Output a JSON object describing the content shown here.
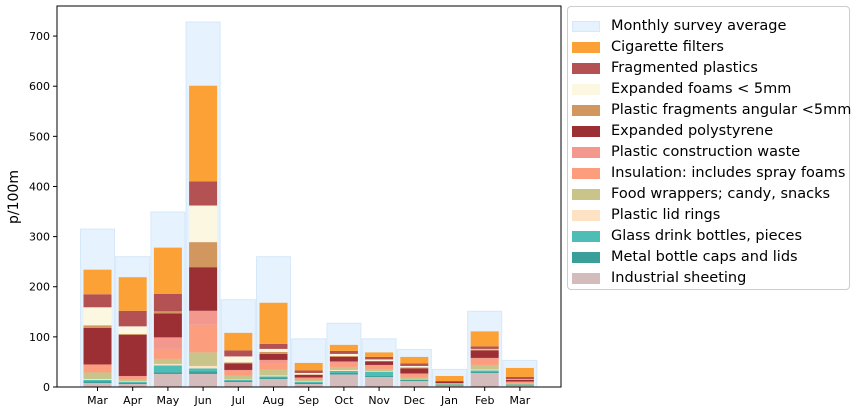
{
  "chart_data": {
    "type": "bar",
    "ylabel": "p/100m",
    "xlabel": "",
    "ylim": [
      0,
      760
    ],
    "yticks": [
      0,
      100,
      200,
      300,
      400,
      500,
      600,
      700
    ],
    "categories": [
      "Mar",
      "Apr",
      "May",
      "Jun",
      "Jul",
      "Aug",
      "Sep",
      "Oct",
      "Nov",
      "Dec",
      "Jan",
      "Feb",
      "Mar"
    ],
    "monthly_average": {
      "name": "Monthly survey average",
      "color": "#e6f2fd",
      "values": [
        315,
        260,
        349,
        728,
        174,
        260,
        96,
        127,
        96,
        75,
        35,
        151,
        53
      ]
    },
    "series": [
      {
        "name": "Industrial sheeting",
        "color": "#d4bcbd",
        "values": [
          8,
          6,
          26,
          26,
          10,
          16,
          6,
          25,
          20,
          12,
          3,
          28,
          3
        ]
      },
      {
        "name": "Metal bottle caps and lids",
        "color": "#3a9f98",
        "values": [
          3,
          2,
          3,
          5,
          2,
          3,
          2,
          3,
          2,
          2,
          1,
          2,
          1
        ]
      },
      {
        "name": "Glass drink bottles, pieces",
        "color": "#4dbdb5",
        "values": [
          3,
          2,
          14,
          6,
          2,
          2,
          2,
          4,
          8,
          1,
          1,
          3,
          1
        ]
      },
      {
        "name": "Plastic lid rings",
        "color": "#fde3c4",
        "values": [
          2,
          1,
          3,
          5,
          1,
          2,
          1,
          2,
          1,
          1,
          0,
          2,
          0
        ]
      },
      {
        "name": "Food wrappers; candy, snacks",
        "color": "#c8c48a",
        "values": [
          13,
          4,
          10,
          27,
          8,
          12,
          3,
          6,
          5,
          3,
          1,
          9,
          3
        ]
      },
      {
        "name": "Insulation: includes spray foams",
        "color": "#fc9d7d",
        "values": [
          13,
          5,
          20,
          55,
          8,
          12,
          3,
          8,
          6,
          6,
          1,
          12,
          2
        ]
      },
      {
        "name": "Plastic construction waste",
        "color": "#f4978c",
        "values": [
          3,
          2,
          23,
          28,
          3,
          7,
          2,
          3,
          2,
          2,
          1,
          2,
          1
        ]
      },
      {
        "name": "Expanded polystyrene",
        "color": "#9c2f33",
        "values": [
          73,
          82,
          48,
          87,
          13,
          12,
          5,
          9,
          7,
          10,
          2,
          15,
          3
        ]
      },
      {
        "name": "Plastic fragments angular <5mm",
        "color": "#d2965f",
        "values": [
          5,
          2,
          4,
          50,
          2,
          4,
          1,
          2,
          1,
          2,
          0,
          2,
          0
        ]
      },
      {
        "name": "Expanded foams < 5mm",
        "color": "#fcf7e1",
        "values": [
          36,
          15,
          0,
          73,
          12,
          6,
          3,
          4,
          3,
          3,
          0,
          1,
          1
        ]
      },
      {
        "name": "Fragmented plastics",
        "color": "#b45152",
        "values": [
          26,
          31,
          35,
          48,
          12,
          10,
          5,
          6,
          5,
          5,
          2,
          5,
          5
        ]
      },
      {
        "name": "Cigarette filters",
        "color": "#fca135",
        "values": [
          49,
          67,
          92,
          191,
          35,
          82,
          15,
          12,
          9,
          13,
          10,
          30,
          18
        ]
      }
    ]
  }
}
